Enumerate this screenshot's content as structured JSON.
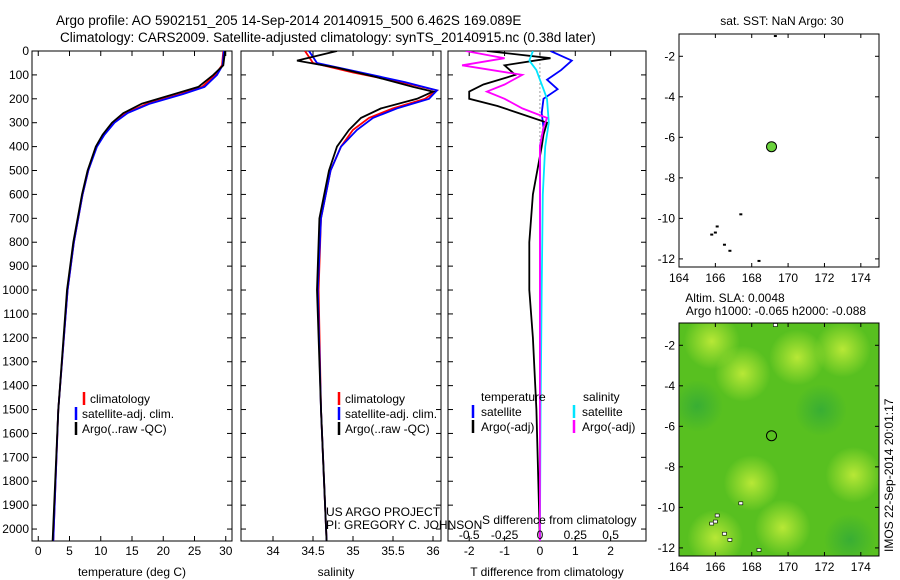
{
  "header": {
    "title_line1": "Argo profile: AO 5902151_205 14-Sep-2014 20140915_500 6.462S 169.089E",
    "title_line2": "Climatology: CARS2009. Satellite-adjusted climatology: synTS_20140915.nc (0.38d later)",
    "side_stamp": "IMOS 22-Sep-2014 20:01:17"
  },
  "colors": {
    "climatology": "#ff0000",
    "satellite": "#0000ff",
    "argo": "#000000",
    "salinity_satellite": "#00e5ff",
    "salinity_argo": "#ff00ff",
    "sla_field": "#58c020",
    "float_marker": "#6ad23c"
  },
  "chart_data": [
    {
      "type": "line",
      "panel": "temperature",
      "xlabel": "temperature (deg C)",
      "xlim": [
        -1,
        31
      ],
      "xticks": [
        0,
        5,
        10,
        15,
        20,
        25,
        30
      ],
      "ylim": [
        0,
        2050
      ],
      "yticks": [
        0,
        100,
        200,
        300,
        400,
        500,
        600,
        700,
        800,
        900,
        1000,
        1100,
        1200,
        1300,
        1400,
        1500,
        1600,
        1700,
        1800,
        1900,
        2000
      ],
      "legend": [
        "climatology",
        "satellite-adj. clim.",
        "Argo(..raw -QC)"
      ],
      "series": [
        {
          "name": "climatology",
          "color": "red",
          "depth": [
            0,
            60,
            100,
            150,
            180,
            220,
            260,
            300,
            350,
            400,
            500,
            600,
            800,
            1000,
            1500,
            2050
          ],
          "values": [
            29.6,
            29.4,
            28.3,
            26.2,
            22.8,
            17.5,
            14.0,
            12.0,
            10.5,
            9.3,
            8.0,
            7.1,
            5.7,
            4.7,
            3.2,
            2.4
          ]
        },
        {
          "name": "satellite-adj. clim.",
          "color": "blue",
          "depth": [
            0,
            60,
            100,
            150,
            180,
            220,
            260,
            300,
            350,
            400,
            500,
            600,
            800,
            1000,
            1500,
            2050
          ],
          "values": [
            29.7,
            29.5,
            28.6,
            26.6,
            23.2,
            17.9,
            14.3,
            12.2,
            10.6,
            9.4,
            8.0,
            7.1,
            5.7,
            4.7,
            3.2,
            2.4
          ]
        },
        {
          "name": "Argo(..raw -QC)",
          "color": "black",
          "depth": [
            0,
            60,
            100,
            150,
            180,
            220,
            260,
            300,
            350,
            400,
            500,
            600,
            800,
            1000,
            1500,
            2050
          ],
          "values": [
            29.9,
            29.6,
            28.0,
            25.6,
            21.8,
            16.6,
            13.6,
            11.8,
            10.3,
            9.2,
            7.9,
            7.0,
            5.6,
            4.6,
            3.2,
            2.3
          ]
        }
      ]
    },
    {
      "type": "line",
      "panel": "salinity",
      "xlabel": "salinity",
      "xlim": [
        33.6,
        36.1
      ],
      "xticks": [
        34,
        34.5,
        35,
        35.5,
        36
      ],
      "ylim": [
        0,
        2050
      ],
      "legend": [
        "climatology",
        "satellite-adj. clim.",
        "Argo(..raw -QC)"
      ],
      "annotation_lines": [
        "US ARGO PROJECT",
        "PI: GREGORY C. JOHNSON"
      ],
      "series": [
        {
          "name": "climatology",
          "color": "red",
          "depth": [
            0,
            50,
            90,
            130,
            165,
            200,
            240,
            280,
            330,
            400,
            500,
            700,
            1000,
            1500,
            2050
          ],
          "values": [
            34.4,
            34.5,
            35.0,
            35.6,
            36.05,
            35.9,
            35.5,
            35.2,
            35.0,
            34.85,
            34.72,
            34.6,
            34.57,
            34.6,
            34.67
          ]
        },
        {
          "name": "satellite-adj. clim.",
          "color": "blue",
          "depth": [
            0,
            50,
            90,
            130,
            165,
            200,
            240,
            280,
            330,
            400,
            500,
            700,
            1000,
            1500,
            2050
          ],
          "values": [
            34.45,
            34.55,
            35.1,
            35.65,
            36.05,
            35.95,
            35.55,
            35.25,
            35.05,
            34.85,
            34.72,
            34.6,
            34.56,
            34.6,
            34.67
          ]
        },
        {
          "name": "Argo(..raw -QC)",
          "color": "black",
          "depth": [
            0,
            40,
            70,
            110,
            150,
            170,
            200,
            240,
            280,
            330,
            400,
            500,
            700,
            1000,
            1500,
            2050
          ],
          "values": [
            34.8,
            34.3,
            34.8,
            35.3,
            35.75,
            36.0,
            35.8,
            35.35,
            35.1,
            34.95,
            34.8,
            34.7,
            34.58,
            34.55,
            34.6,
            34.67
          ]
        }
      ]
    },
    {
      "type": "line",
      "panel": "differences",
      "xlabel_top": "S difference from climatology",
      "xlabel": "T difference from climatology",
      "xlim": [
        -2.6,
        3.0
      ],
      "xticks": [
        -2,
        -1,
        0,
        1,
        2
      ],
      "s_ticks": [
        {
          "pos": -2,
          "label": "-0.5"
        },
        {
          "pos": -1,
          "label": "-0.25"
        },
        {
          "pos": 0,
          "label": "0"
        },
        {
          "pos": 1,
          "label": "0.25"
        },
        {
          "pos": 2,
          "label": "0.5"
        }
      ],
      "ylim": [
        0,
        2050
      ],
      "legend_groups": {
        "temperature": [
          "satellite",
          "Argo(-adj)"
        ],
        "salinity": [
          "satellite",
          "Argo(-adj)"
        ]
      },
      "legend_titles": [
        "temperature",
        "salinity"
      ],
      "series": [
        {
          "name": "temperature satellite",
          "color": "blue",
          "depth": [
            0,
            40,
            80,
            120,
            160,
            200,
            260,
            320,
            400,
            600,
            1000,
            1500,
            2050
          ],
          "values": [
            0.3,
            0.9,
            0.6,
            0.2,
            0.5,
            0.1,
            0.05,
            0.1,
            0.0,
            0.0,
            0.0,
            0.0,
            0.0
          ]
        },
        {
          "name": "temperature Argo",
          "color": "black",
          "depth": [
            0,
            30,
            60,
            100,
            140,
            170,
            200,
            230,
            260,
            300,
            350,
            400,
            600,
            800,
            1000,
            1200,
            1500,
            2050
          ],
          "values": [
            -1.5,
            0.3,
            -1.0,
            -0.7,
            -1.6,
            -2.0,
            -2.0,
            -1.2,
            -0.6,
            0.2,
            0.1,
            0.05,
            -0.2,
            -0.3,
            -0.3,
            -0.2,
            -0.1,
            0.0
          ]
        },
        {
          "name": "salinity satellite",
          "color": "cyan",
          "depth": [
            0,
            40,
            80,
            120,
            160,
            200,
            300,
            400,
            600,
            1000,
            1500,
            2050
          ],
          "values": [
            -0.2,
            -0.3,
            -0.1,
            0.0,
            0.1,
            0.2,
            0.25,
            0.15,
            0.08,
            0.05,
            0.02,
            0.0
          ]
        },
        {
          "name": "salinity Argo",
          "color": "magenta",
          "depth": [
            0,
            30,
            60,
            100,
            140,
            170,
            200,
            240,
            280,
            320,
            400,
            600,
            1000,
            2050
          ],
          "values": [
            -2.1,
            -1.0,
            -2.2,
            -0.5,
            -1.0,
            -1.5,
            -1.0,
            -0.5,
            0.2,
            0.1,
            0.0,
            0.0,
            0.0,
            0.0
          ]
        }
      ]
    },
    {
      "type": "scatter",
      "panel": "sst_map",
      "title": "sat. SST: NaN Argo: 30",
      "xlim": [
        164,
        175
      ],
      "xticks": [
        164,
        166,
        168,
        170,
        172,
        174
      ],
      "ylim": [
        -12.4,
        -0.9
      ],
      "yticks": [
        -2,
        -4,
        -6,
        -8,
        -10,
        -12
      ],
      "float_position": {
        "lon": 169.089,
        "lat": -6.462
      },
      "islands": [
        {
          "lon": 165.8,
          "lat": -10.8
        },
        {
          "lon": 166.0,
          "lat": -10.7
        },
        {
          "lon": 166.1,
          "lat": -10.4
        },
        {
          "lon": 166.5,
          "lat": -11.3
        },
        {
          "lon": 166.8,
          "lat": -11.6
        },
        {
          "lon": 167.4,
          "lat": -9.8
        },
        {
          "lon": 169.3,
          "lat": -1.0
        },
        {
          "lon": 168.4,
          "lat": -12.1
        }
      ]
    },
    {
      "type": "heatmap",
      "panel": "sla_map",
      "title_lines": [
        "Altim. SLA: 0.0048",
        "Argo h1000: -0.065 h2000: -0.088"
      ],
      "xlim": [
        164,
        175
      ],
      "xticks": [
        164,
        166,
        168,
        170,
        172,
        174
      ],
      "ylim": [
        -12.4,
        -0.9
      ],
      "yticks": [
        -2,
        -4,
        -6,
        -8,
        -10,
        -12
      ],
      "float_position": {
        "lon": 169.089,
        "lat": -6.462
      },
      "bright_spots": [
        {
          "lon": 165.8,
          "lat": -1.8
        },
        {
          "lon": 167.5,
          "lat": -3.4
        },
        {
          "lon": 170.5,
          "lat": -2.6
        },
        {
          "lon": 173.0,
          "lat": -2.2
        },
        {
          "lon": 168.0,
          "lat": -8.8
        },
        {
          "lon": 173.6,
          "lat": -8.4
        },
        {
          "lon": 169.7,
          "lat": -11.0
        },
        {
          "lon": 166.0,
          "lat": -11.5
        }
      ],
      "dark_spots": [
        {
          "lon": 165.0,
          "lat": -5.0
        },
        {
          "lon": 171.8,
          "lat": -5.2
        },
        {
          "lon": 173.4,
          "lat": -11.6
        }
      ]
    }
  ]
}
